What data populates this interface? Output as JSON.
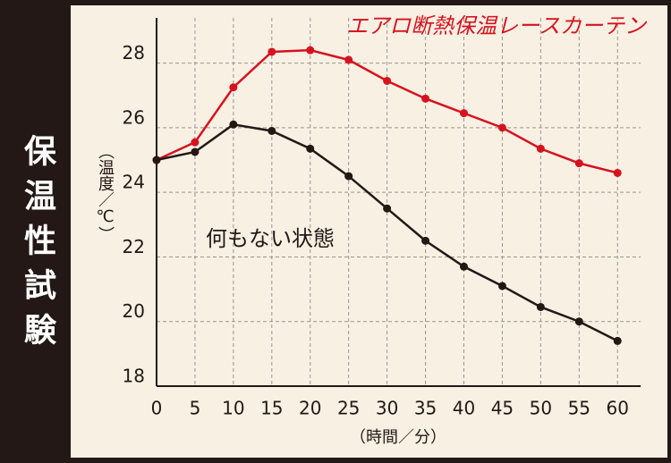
{
  "chart_data": {
    "type": "line",
    "side_title": "保温性試験",
    "x_label": "（時間／分）",
    "y_label": "（温度／℃）",
    "x": [
      0,
      5,
      10,
      15,
      20,
      25,
      30,
      35,
      40,
      45,
      50,
      55,
      60
    ],
    "series": [
      {
        "name": "エアロ断熱保温レースカーテン",
        "color": "#d7121f",
        "values": [
          25.0,
          25.55,
          27.25,
          28.35,
          28.4,
          28.1,
          27.45,
          26.9,
          26.45,
          26.0,
          25.35,
          24.9,
          24.6
        ]
      },
      {
        "name": "何もない状態",
        "color": "#231815",
        "values": [
          25.0,
          25.25,
          26.1,
          25.9,
          25.35,
          24.5,
          23.5,
          22.5,
          21.7,
          21.1,
          20.45,
          20.0,
          19.4
        ]
      }
    ],
    "xlim": [
      0,
      63
    ],
    "ylim": [
      18,
      29.4
    ],
    "xticks": [
      0,
      5,
      10,
      15,
      20,
      25,
      30,
      35,
      40,
      45,
      50,
      55,
      60
    ],
    "yticks": [
      18,
      20,
      22,
      24,
      26,
      28
    ],
    "grid": true
  }
}
